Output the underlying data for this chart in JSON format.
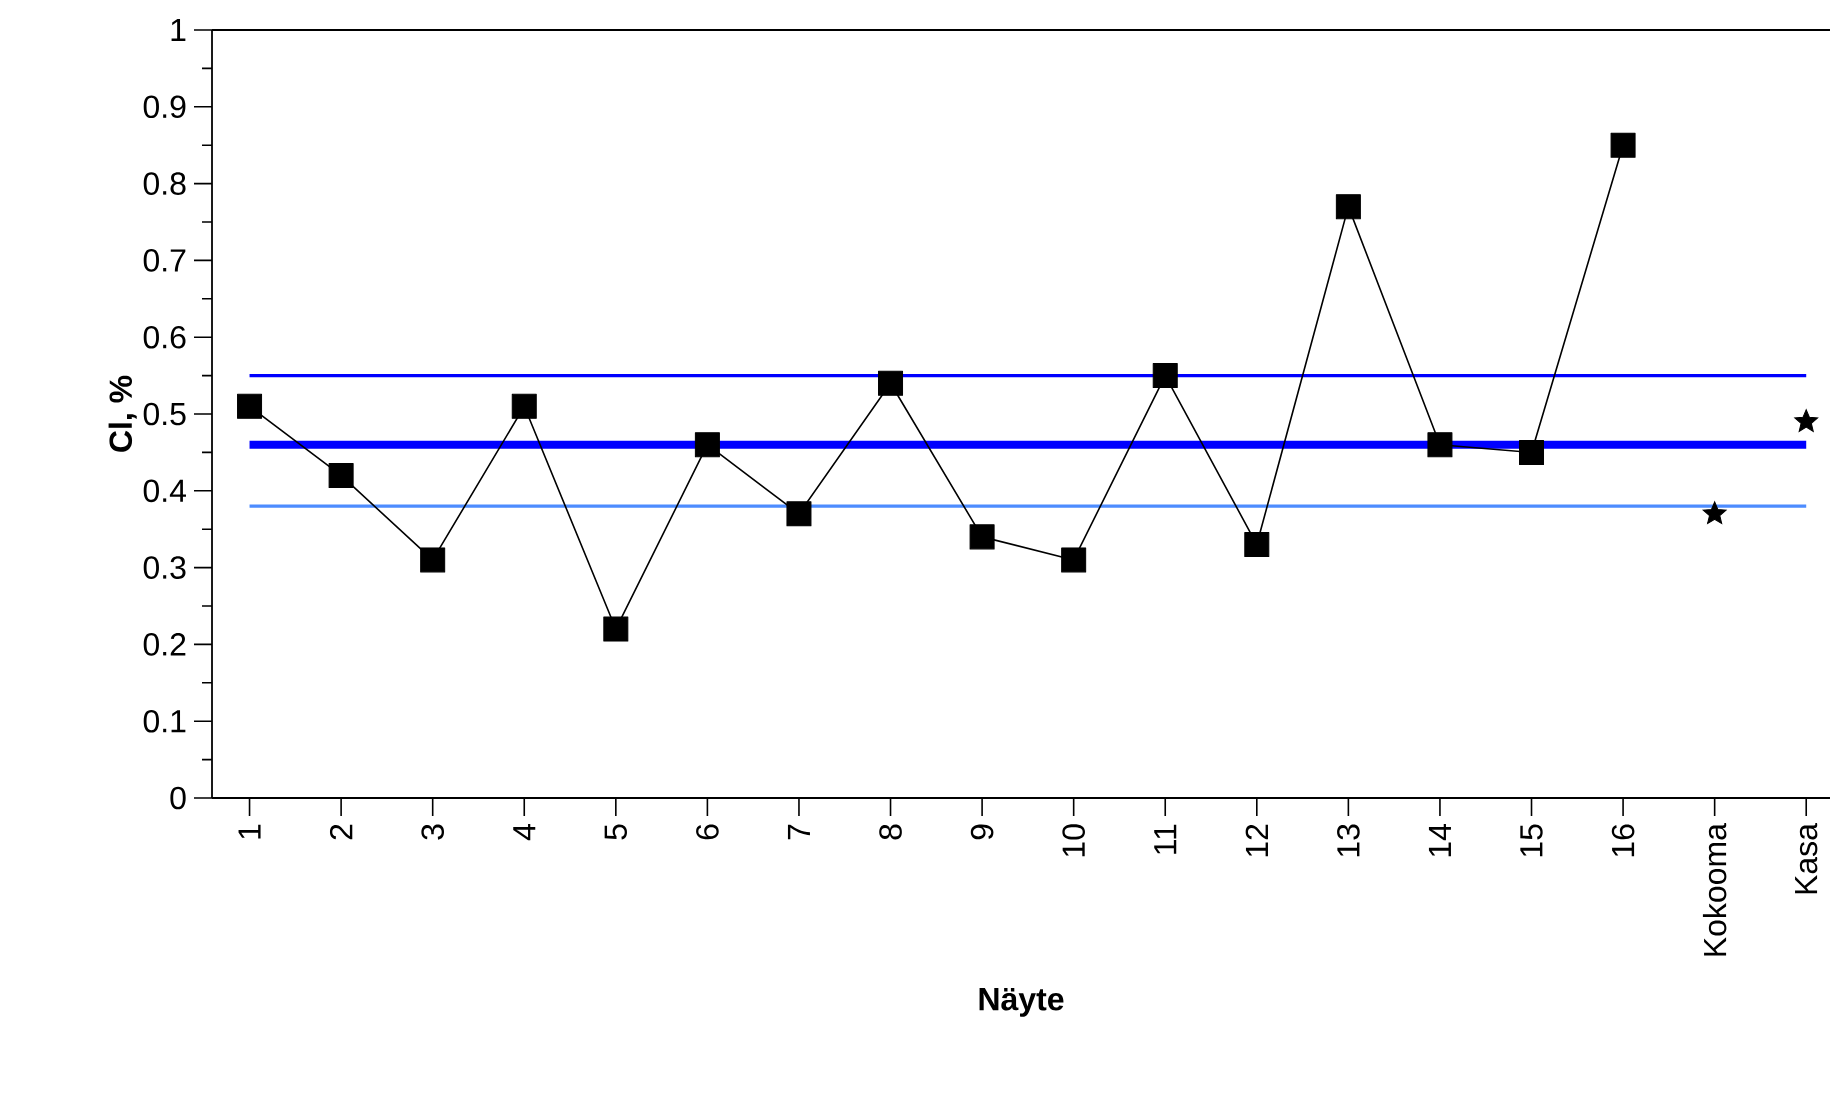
{
  "chart_data": {
    "type": "line",
    "xlabel": "Näyte",
    "ylabel": "Cl, %",
    "categories": [
      "1",
      "2",
      "3",
      "4",
      "5",
      "6",
      "7",
      "8",
      "9",
      "10",
      "11",
      "12",
      "13",
      "14",
      "15",
      "16",
      "Kokooma",
      "Kasa"
    ],
    "series": [
      {
        "color": "#000000",
        "marker": "square",
        "values": [
          0.51,
          0.42,
          0.31,
          0.51,
          0.22,
          0.46,
          0.37,
          0.54,
          0.34,
          0.31,
          0.55,
          0.33,
          0.77,
          0.46,
          0.45,
          0.85,
          null,
          null
        ]
      },
      {
        "type": "scatter",
        "color": "#000000",
        "marker": "star",
        "values": [
          null,
          null,
          null,
          null,
          null,
          null,
          null,
          null,
          null,
          null,
          null,
          null,
          null,
          null,
          null,
          null,
          0.37,
          0.49
        ]
      }
    ],
    "ylim": [
      0,
      1
    ],
    "yticks": [
      0,
      0.1,
      0.2,
      0.3,
      0.4,
      0.5,
      0.6,
      0.7,
      0.8,
      0.9,
      1
    ],
    "ref_lines": [
      {
        "axis": "y",
        "value": 0.55,
        "color": "#0000ff"
      },
      {
        "axis": "y",
        "value": 0.46,
        "color": "#0000ff"
      },
      {
        "axis": "y",
        "value": 0.38,
        "color": "#4d8cff"
      }
    ],
    "grid": false
  }
}
